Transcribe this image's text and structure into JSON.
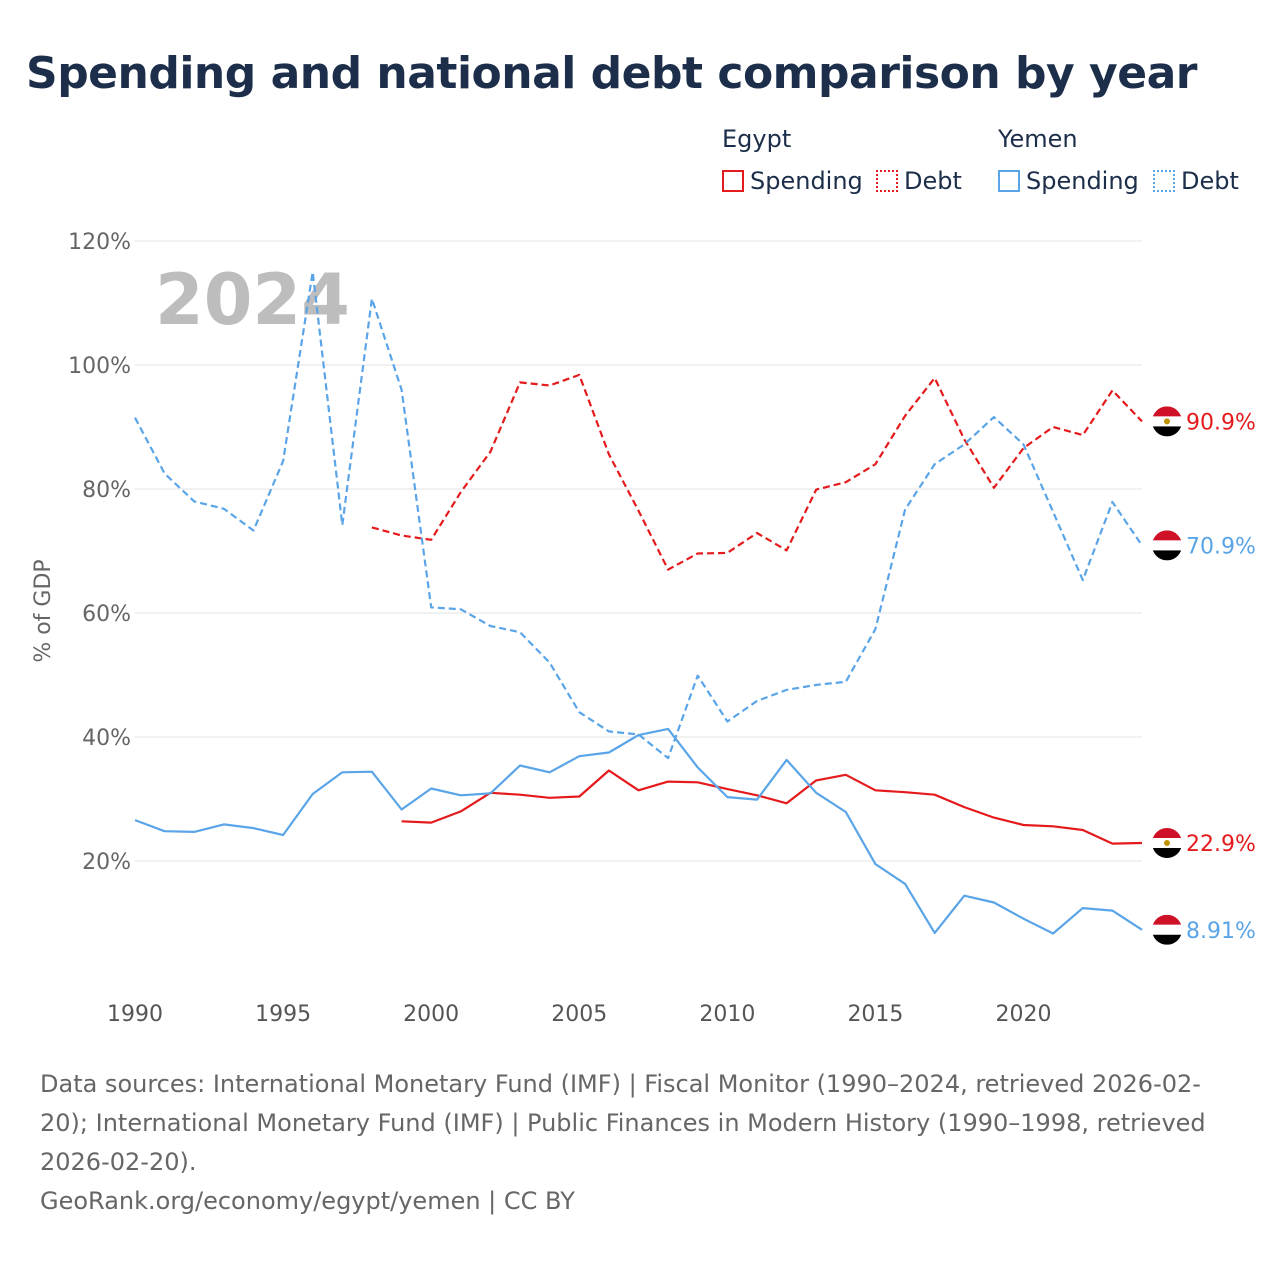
{
  "title": "Spending and national debt comparison by year",
  "legend": {
    "groups": [
      {
        "country": "Egypt",
        "color": "#e41a1c",
        "items": [
          {
            "label": "Spending",
            "style": "solid"
          },
          {
            "label": "Debt",
            "style": "dotted"
          }
        ]
      },
      {
        "country": "Yemen",
        "color": "#5aa4e8",
        "items": [
          {
            "label": "Spending",
            "style": "solid"
          },
          {
            "label": "Debt",
            "style": "dotted"
          }
        ]
      }
    ]
  },
  "year_watermark": "2024",
  "footer": {
    "sources": "Data sources: International Monetary Fund (IMF) | Fiscal Monitor (1990–2024, retrieved 2026-02-20); International Monetary Fund (IMF) | Public Finances in Modern History (1990–1998, retrieved 2026-02-20).",
    "credit": "GeoRank.org/economy/egypt/yemen | CC BY"
  },
  "chart_data": {
    "type": "line",
    "title": "Spending and national debt comparison by year",
    "xlabel": "",
    "ylabel": "% of GDP",
    "xlim": [
      1990,
      2024
    ],
    "ylim": [
      0,
      120
    ],
    "y_ticks": [
      20,
      40,
      60,
      80,
      100,
      120
    ],
    "y_tick_labels": [
      "20%",
      "40%",
      "60%",
      "80%",
      "100%",
      "120%"
    ],
    "x_ticks": [
      1990,
      1995,
      2000,
      2005,
      2010,
      2015,
      2020
    ],
    "x_tick_labels": [
      "1990",
      "1995",
      "2000",
      "2005",
      "2010",
      "2015",
      "2020"
    ],
    "grid": true,
    "series": [
      {
        "name": "Egypt Debt",
        "country": "Egypt",
        "metric": "Debt",
        "color": "#e41a1c",
        "dash": "dashed",
        "end_label": "90.9%",
        "x": [
          1998,
          1999,
          2000,
          2001,
          2002,
          2003,
          2004,
          2005,
          2006,
          2007,
          2008,
          2009,
          2010,
          2011,
          2012,
          2013,
          2014,
          2015,
          2016,
          2017,
          2018,
          2019,
          2020,
          2021,
          2022,
          2023,
          2024
        ],
        "values": [
          73.8,
          72.5,
          71.8,
          79.5,
          86.0,
          97.2,
          96.7,
          98.4,
          85.6,
          76.5,
          67.0,
          69.6,
          69.7,
          72.9,
          70.1,
          79.9,
          81.1,
          84.0,
          91.8,
          97.9,
          88.0,
          80.2,
          86.6,
          90.0,
          88.7,
          95.9,
          90.9
        ]
      },
      {
        "name": "Yemen Debt",
        "country": "Yemen",
        "metric": "Debt",
        "color": "#5aa4e8",
        "dash": "dashed",
        "end_label": "70.9%",
        "x": [
          1990,
          1991,
          1992,
          1993,
          1994,
          1995,
          1996,
          1997,
          1998,
          1999,
          2000,
          2001,
          2002,
          2003,
          2004,
          2005,
          2006,
          2007,
          2008,
          2009,
          2010,
          2011,
          2012,
          2013,
          2014,
          2015,
          2016,
          2017,
          2018,
          2019,
          2020,
          2021,
          2022,
          2023,
          2024
        ],
        "values": [
          91.5,
          82.5,
          78.0,
          76.8,
          73.3,
          84.5,
          115.0,
          74.2,
          110.7,
          96.0,
          60.9,
          60.6,
          57.9,
          56.9,
          52.0,
          44.0,
          40.9,
          40.4,
          36.6,
          49.9,
          42.5,
          45.8,
          47.6,
          48.4,
          48.9,
          57.4,
          76.7,
          84.0,
          87.2,
          91.6,
          87.2,
          76.3,
          65.3,
          77.9,
          70.9
        ]
      },
      {
        "name": "Egypt Spending",
        "country": "Egypt",
        "metric": "Spending",
        "color": "#e41a1c",
        "dash": "solid",
        "end_label": "22.9%",
        "x": [
          1999,
          2000,
          2001,
          2002,
          2003,
          2004,
          2005,
          2006,
          2007,
          2008,
          2009,
          2010,
          2011,
          2012,
          2013,
          2014,
          2015,
          2016,
          2017,
          2018,
          2019,
          2020,
          2021,
          2022,
          2023,
          2024
        ],
        "values": [
          26.4,
          26.2,
          28.0,
          31.0,
          30.7,
          30.2,
          30.4,
          34.6,
          31.4,
          32.8,
          32.7,
          31.6,
          30.6,
          29.3,
          33.0,
          33.9,
          31.4,
          31.1,
          30.7,
          28.7,
          27.0,
          25.8,
          25.6,
          25.0,
          22.8,
          22.9
        ]
      },
      {
        "name": "Yemen Spending",
        "country": "Yemen",
        "metric": "Spending",
        "color": "#5aa4e8",
        "dash": "solid",
        "end_label": "8.91%",
        "x": [
          1990,
          1991,
          1992,
          1993,
          1994,
          1995,
          1996,
          1997,
          1998,
          1999,
          2000,
          2001,
          2002,
          2003,
          2004,
          2005,
          2006,
          2007,
          2008,
          2009,
          2010,
          2011,
          2012,
          2013,
          2014,
          2015,
          2016,
          2017,
          2018,
          2019,
          2020,
          2021,
          2022,
          2023,
          2024
        ],
        "values": [
          26.6,
          24.8,
          24.7,
          25.9,
          25.3,
          24.2,
          30.8,
          34.3,
          34.4,
          28.3,
          31.7,
          30.6,
          30.9,
          35.4,
          34.3,
          36.9,
          37.5,
          40.3,
          41.3,
          35.1,
          30.3,
          29.9,
          36.3,
          31.0,
          27.9,
          19.5,
          16.3,
          8.4,
          14.4,
          13.3,
          10.7,
          8.3,
          12.4,
          12.0,
          8.91
        ]
      }
    ]
  }
}
